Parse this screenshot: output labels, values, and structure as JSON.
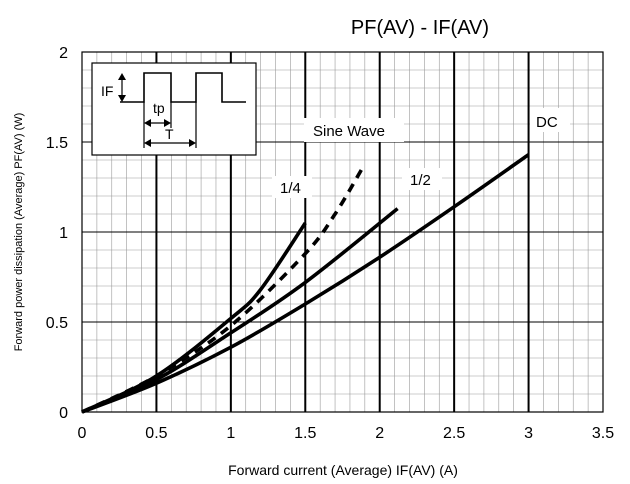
{
  "chart_data": {
    "type": "line",
    "title": "PF(AV) - IF(AV)",
    "xlabel": "Forward current (Average)  IF(AV) (A)",
    "ylabel": "Forward power dissipation (Average)  PF(AV)  (W)",
    "xlim": [
      0,
      3.5
    ],
    "ylim": [
      0,
      2
    ],
    "x_ticks": [
      "0",
      "0.5",
      "1",
      "1.5",
      "2",
      "2.5",
      "3",
      "3.5"
    ],
    "y_ticks": [
      "0",
      "0.5",
      "1",
      "1.5",
      "2"
    ],
    "grid": true,
    "series": [
      {
        "name": "DC",
        "style": "solid",
        "x": [
          0,
          0.5,
          1.0,
          1.5,
          2.0,
          2.5,
          3.0
        ],
        "y": [
          0,
          0.16,
          0.36,
          0.6,
          0.86,
          1.14,
          1.43
        ]
      },
      {
        "name": "1/2",
        "style": "solid",
        "x": [
          0,
          0.5,
          1.0,
          1.5,
          2.12
        ],
        "y": [
          0,
          0.18,
          0.44,
          0.72,
          1.13
        ]
      },
      {
        "name": "1/4",
        "style": "solid",
        "x": [
          0,
          0.5,
          1.0,
          1.2,
          1.5
        ],
        "y": [
          0,
          0.2,
          0.52,
          0.68,
          1.05
        ]
      },
      {
        "name": "Sine Wave",
        "style": "dashed",
        "x": [
          0,
          0.5,
          1.0,
          1.5,
          1.7,
          1.88
        ],
        "y": [
          0,
          0.2,
          0.48,
          0.88,
          1.1,
          1.35
        ]
      }
    ],
    "inset": {
      "if_label": "IF",
      "tp_label": "tp",
      "t_label": "T"
    }
  }
}
